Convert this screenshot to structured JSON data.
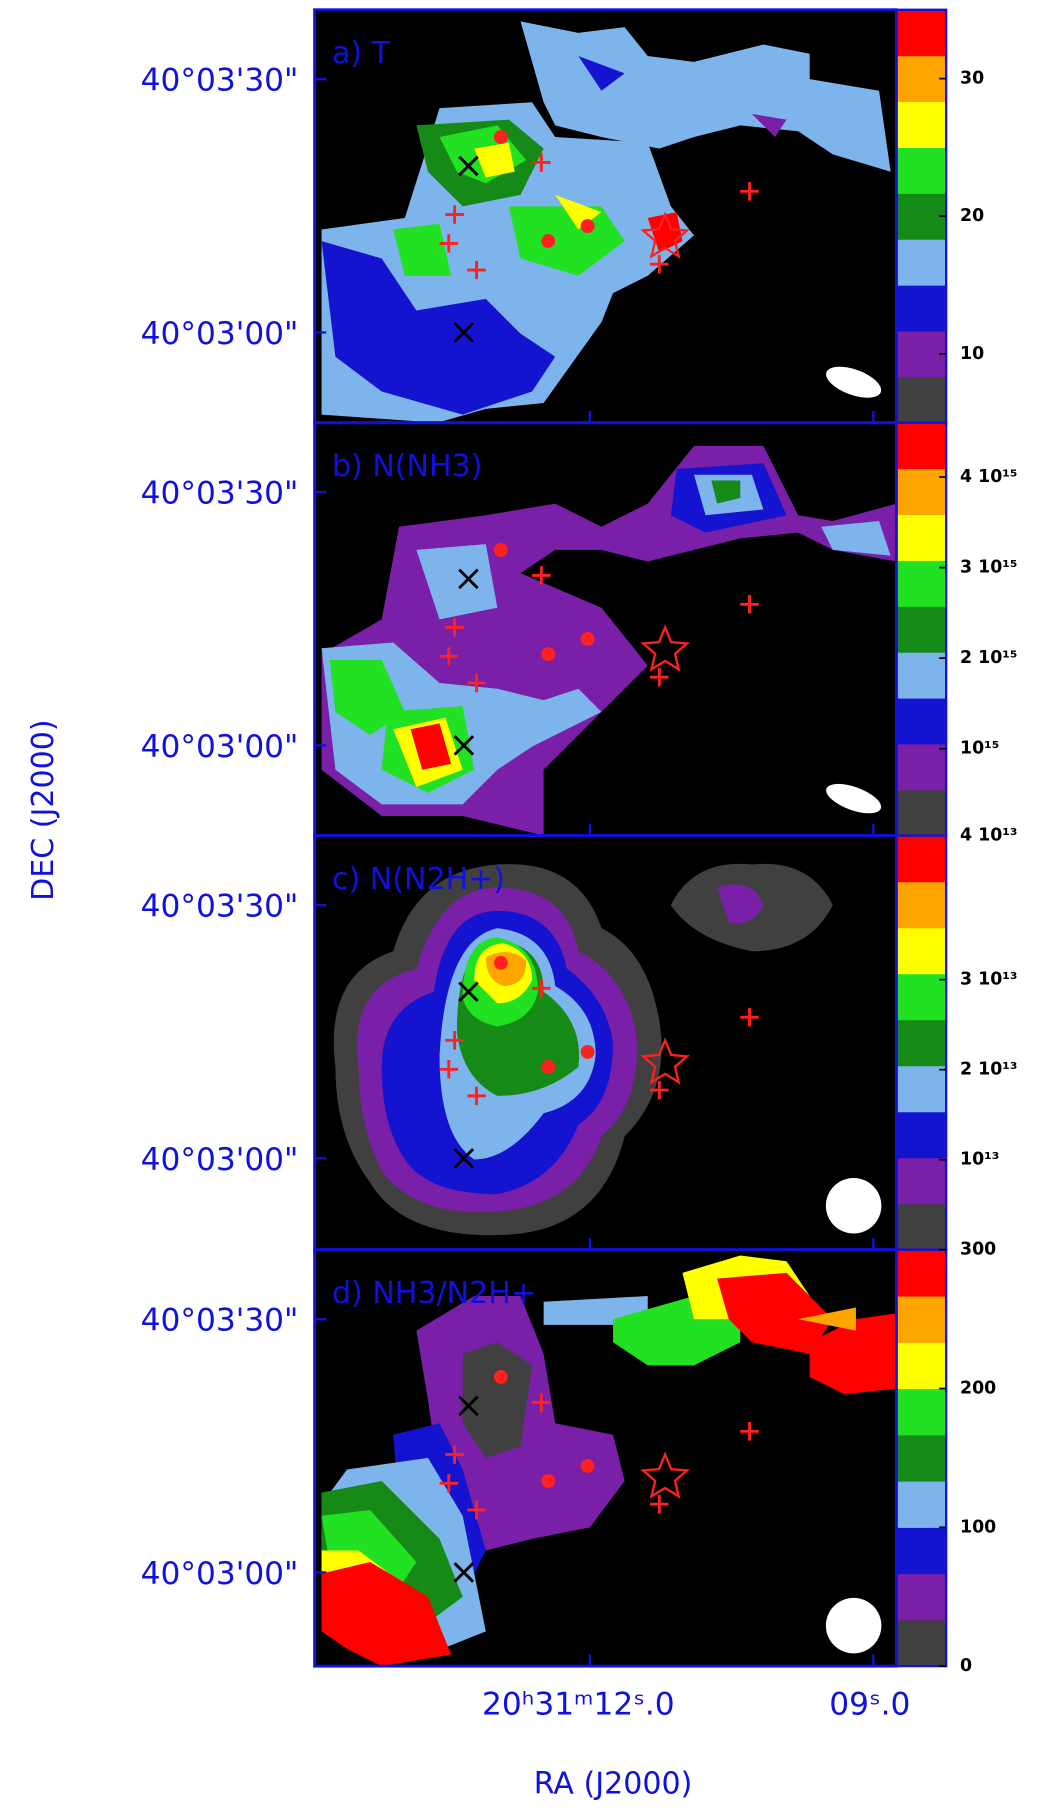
{
  "axes": {
    "xlabel": "RA (J2000)",
    "ylabel": "DEC (J2000)",
    "xtick_labels": [
      "20ʰ31ᵐ12ˢ.0",
      "09ˢ.0"
    ],
    "ytick_labels": [
      "40°03'30\"",
      "40°03'00\""
    ]
  },
  "chart_data": [
    {
      "type": "heatmap",
      "title": "a) T",
      "colorbar": {
        "colors": [
          "#404040",
          "#7a1fa8",
          "#1414d0",
          "#7eb4ec",
          "#168a16",
          "#22e022",
          "#ffff00",
          "#ffa500",
          "#ff0000"
        ],
        "clim": [
          5,
          35
        ],
        "cticks": [
          10,
          20,
          30
        ]
      }
    },
    {
      "type": "heatmap",
      "title": "b) N(NH3)",
      "colorbar": {
        "colors": [
          "#404040",
          "#7a1fa8",
          "#1414d0",
          "#7eb4ec",
          "#168a16",
          "#22e022",
          "#ffff00",
          "#ffa500",
          "#ff0000"
        ],
        "clim": [
          40000000000000,
          4600000000000000
        ],
        "cticks": [
          {
            "value": 40000000000000,
            "label": "4 10¹³"
          },
          {
            "value": 1000000000000000,
            "label": "10¹⁵"
          },
          {
            "value": 2000000000000000,
            "label": "2 10¹⁵"
          },
          {
            "value": 3000000000000000,
            "label": "3 10¹⁵"
          },
          {
            "value": 4000000000000000,
            "label": "4 10¹⁵"
          }
        ]
      }
    },
    {
      "type": "heatmap",
      "title": "c) N(N2H+)",
      "colorbar": {
        "colors": [
          "#404040",
          "#7a1fa8",
          "#1414d0",
          "#7eb4ec",
          "#168a16",
          "#22e022",
          "#ffff00",
          "#ffa500",
          "#ff0000"
        ],
        "clim": [
          0,
          46000000000000
        ],
        "cticks": [
          {
            "value": 10000000000000,
            "label": "10¹³"
          },
          {
            "value": 20000000000000,
            "label": "2 10¹³"
          },
          {
            "value": 30000000000000,
            "label": "3 10¹³"
          }
        ]
      }
    },
    {
      "type": "heatmap",
      "title": "d) NH3/N2H+",
      "colorbar": {
        "colors": [
          "#404040",
          "#7a1fa8",
          "#1414d0",
          "#7eb4ec",
          "#168a16",
          "#22e022",
          "#ffff00",
          "#ffa500",
          "#ff0000"
        ],
        "clim": [
          0,
          300
        ],
        "cticks": [
          0,
          100,
          200,
          300
        ]
      }
    }
  ]
}
